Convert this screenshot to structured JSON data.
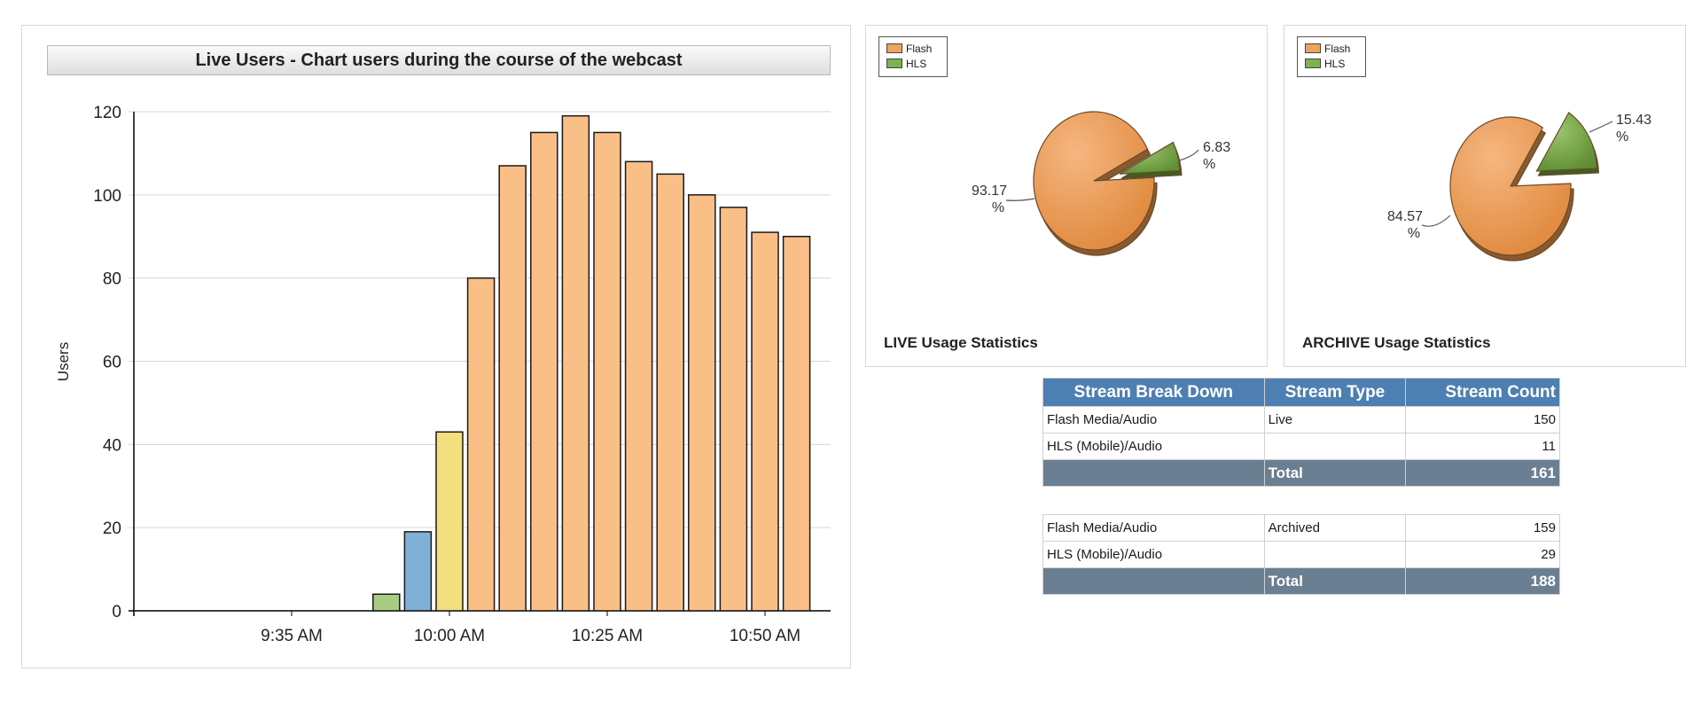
{
  "chart_data": [
    {
      "type": "bar",
      "title": "Live Users - Chart users during the course of the webcast",
      "xlabel": "",
      "ylabel": "Users",
      "ylim": [
        0,
        120
      ],
      "yticks": [
        0,
        20,
        40,
        60,
        80,
        100,
        120
      ],
      "xtick_labels": [
        "9:35 AM",
        "10:00 AM",
        "10:25 AM",
        "10:50 AM"
      ],
      "grid": true,
      "bars": [
        {
          "x": "9:50 AM",
          "value": 4,
          "color": "#a8cc80"
        },
        {
          "x": "9:55 AM",
          "value": 19,
          "color": "#7fb0d8"
        },
        {
          "x": "10:00 AM",
          "value": 43,
          "color": "#f4df80"
        },
        {
          "x": "10:05 AM",
          "value": 80,
          "color": "#f9bf87"
        },
        {
          "x": "10:10 AM",
          "value": 107,
          "color": "#f9bf87"
        },
        {
          "x": "10:15 AM",
          "value": 115,
          "color": "#f9bf87"
        },
        {
          "x": "10:20 AM",
          "value": 119,
          "color": "#f9bf87"
        },
        {
          "x": "10:25 AM",
          "value": 115,
          "color": "#f9bf87"
        },
        {
          "x": "10:30 AM",
          "value": 108,
          "color": "#f9bf87"
        },
        {
          "x": "10:35 AM",
          "value": 105,
          "color": "#f9bf87"
        },
        {
          "x": "10:40 AM",
          "value": 100,
          "color": "#f9bf87"
        },
        {
          "x": "10:45 AM",
          "value": 97,
          "color": "#f9bf87"
        },
        {
          "x": "10:50 AM",
          "value": 91,
          "color": "#f9bf87"
        },
        {
          "x": "10:55 AM",
          "value": 90,
          "color": "#f9bf87"
        }
      ]
    },
    {
      "type": "pie",
      "title": "LIVE Usage Statistics",
      "legend": [
        {
          "name": "Flash",
          "color": "#e8924a"
        },
        {
          "name": "HLS",
          "color": "#6f9e3e"
        }
      ],
      "slices": [
        {
          "name": "Flash",
          "value": 93.17,
          "label_value": "93.17",
          "label_unit": "%"
        },
        {
          "name": "HLS",
          "value": 6.83,
          "label_value": "6.83",
          "label_unit": "%"
        }
      ]
    },
    {
      "type": "pie",
      "title": "ARCHIVE Usage Statistics",
      "legend": [
        {
          "name": "Flash",
          "color": "#e8924a"
        },
        {
          "name": "HLS",
          "color": "#6f9e3e"
        }
      ],
      "slices": [
        {
          "name": "Flash",
          "value": 84.57,
          "label_value": "84.57",
          "label_unit": "%"
        },
        {
          "name": "HLS",
          "value": 15.43,
          "label_value": "15.43",
          "label_unit": "%"
        }
      ]
    },
    {
      "type": "table",
      "columns": [
        "Stream Break Down",
        "Stream Type",
        "Stream Count"
      ],
      "live_rows": [
        {
          "name": "Flash Media/Audio",
          "type": "Live",
          "count": "150"
        },
        {
          "name": "HLS (Mobile)/Audio",
          "type": "",
          "count": "11"
        }
      ],
      "live_total": {
        "label": "Total",
        "count": "161"
      },
      "archive_rows": [
        {
          "name": "Flash Media/Audio",
          "type": "Archived",
          "count": "159"
        },
        {
          "name": "HLS (Mobile)/Audio",
          "type": "",
          "count": "29"
        }
      ],
      "archive_total": {
        "label": "Total",
        "count": "188"
      }
    }
  ]
}
